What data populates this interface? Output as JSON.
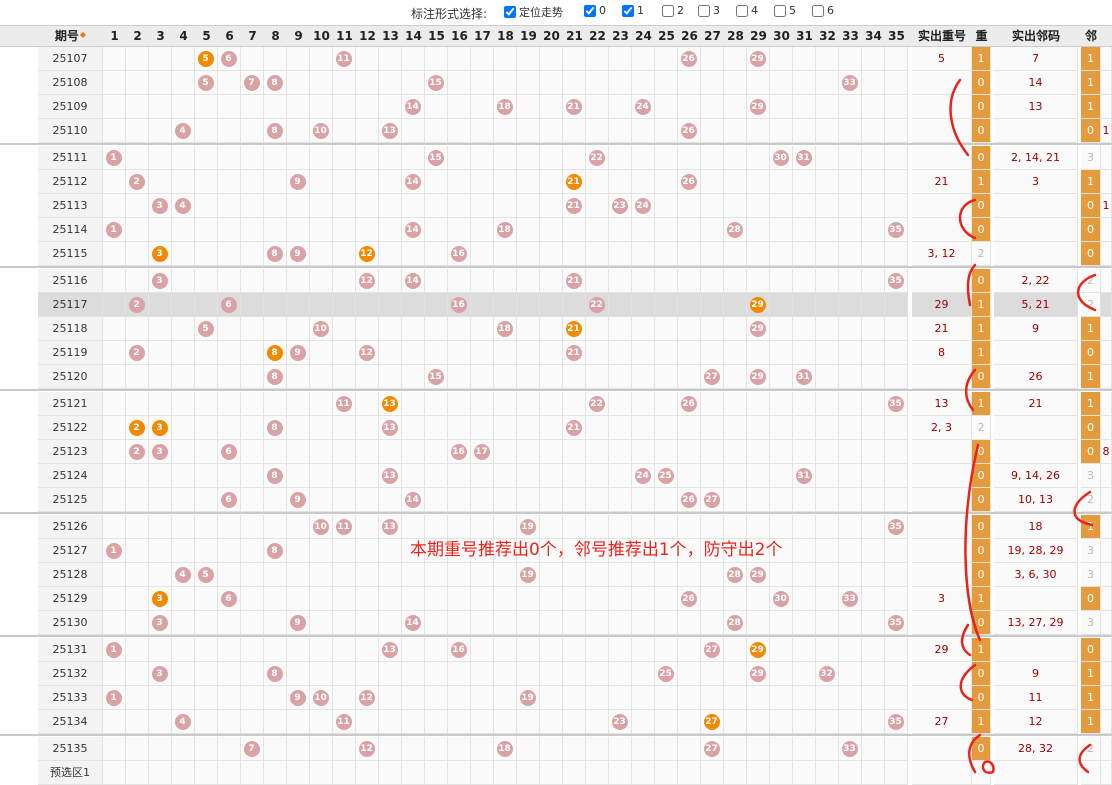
{
  "filter": {
    "title": "标注形式选择:",
    "options": [
      {
        "label": "定位走势",
        "checked": true
      },
      {
        "label": "0",
        "checked": true
      },
      {
        "label": "1",
        "checked": true
      },
      {
        "label": "2",
        "checked": false
      },
      {
        "label": "3",
        "checked": false
      },
      {
        "label": "4",
        "checked": false
      },
      {
        "label": "5",
        "checked": false
      },
      {
        "label": "6",
        "checked": false
      }
    ]
  },
  "header": {
    "period_label": "期号",
    "numbers": [
      "1",
      "2",
      "3",
      "4",
      "5",
      "6",
      "7",
      "8",
      "9",
      "10",
      "11",
      "12",
      "13",
      "14",
      "15",
      "16",
      "17",
      "18",
      "19",
      "20",
      "21",
      "22",
      "23",
      "24",
      "25",
      "26",
      "27",
      "28",
      "29",
      "30",
      "31",
      "32",
      "33",
      "34",
      "35"
    ],
    "repeat_label": "实出重号",
    "zhong_label": "重",
    "neighbor_label": "实出邻码",
    "lin_label": "邻"
  },
  "rows": [
    {
      "id": "25107",
      "balls": [
        [
          5,
          "o"
        ],
        [
          6,
          "p"
        ],
        [
          11,
          "p"
        ],
        [
          26,
          "p"
        ],
        [
          29,
          "p"
        ]
      ],
      "repeat": "5",
      "zhong": "1",
      "neighbor": "7",
      "lin": "1",
      "extra": ""
    },
    {
      "id": "25108",
      "balls": [
        [
          5,
          "p"
        ],
        [
          7,
          "p"
        ],
        [
          8,
          "p"
        ],
        [
          15,
          "p"
        ],
        [
          33,
          "p"
        ]
      ],
      "repeat": "",
      "zhong": "0",
      "neighbor": "14",
      "lin": "1",
      "extra": ""
    },
    {
      "id": "25109",
      "balls": [
        [
          14,
          "p"
        ],
        [
          18,
          "p"
        ],
        [
          21,
          "p"
        ],
        [
          24,
          "p"
        ],
        [
          29,
          "p"
        ]
      ],
      "repeat": "",
      "zhong": "0",
      "neighbor": "13",
      "lin": "1",
      "extra": ""
    },
    {
      "id": "25110",
      "balls": [
        [
          4,
          "p"
        ],
        [
          8,
          "p"
        ],
        [
          10,
          "p"
        ],
        [
          13,
          "p"
        ],
        [
          26,
          "p"
        ]
      ],
      "repeat": "",
      "zhong": "0",
      "neighbor": "",
      "lin": "0",
      "extra": "1"
    },
    {
      "id": "25111",
      "balls": [
        [
          1,
          "p"
        ],
        [
          15,
          "p"
        ],
        [
          22,
          "p"
        ],
        [
          30,
          "p"
        ],
        [
          31,
          "p"
        ]
      ],
      "repeat": "",
      "zhong": "0",
      "neighbor": "2, 14, 21",
      "lin": "3",
      "extra": ""
    },
    {
      "id": "25112",
      "balls": [
        [
          2,
          "p"
        ],
        [
          9,
          "p"
        ],
        [
          14,
          "p"
        ],
        [
          21,
          "o"
        ],
        [
          26,
          "p"
        ]
      ],
      "repeat": "21",
      "zhong": "1",
      "neighbor": "3",
      "lin": "1",
      "extra": ""
    },
    {
      "id": "25113",
      "balls": [
        [
          3,
          "p"
        ],
        [
          4,
          "p"
        ],
        [
          21,
          "p"
        ],
        [
          23,
          "p"
        ],
        [
          24,
          "p"
        ]
      ],
      "repeat": "",
      "zhong": "0",
      "neighbor": "",
      "lin": "0",
      "extra": "1"
    },
    {
      "id": "25114",
      "balls": [
        [
          1,
          "p"
        ],
        [
          14,
          "p"
        ],
        [
          18,
          "p"
        ],
        [
          28,
          "p"
        ],
        [
          35,
          "p"
        ]
      ],
      "repeat": "",
      "zhong": "0",
      "neighbor": "",
      "lin": "0",
      "extra": ""
    },
    {
      "id": "25115",
      "balls": [
        [
          3,
          "o"
        ],
        [
          8,
          "p"
        ],
        [
          9,
          "p"
        ],
        [
          12,
          "o"
        ],
        [
          16,
          "p"
        ]
      ],
      "repeat": "3, 12",
      "zhong": "2",
      "neighbor": "",
      "lin": "0",
      "extra": ""
    },
    {
      "id": "25116",
      "balls": [
        [
          3,
          "p"
        ],
        [
          12,
          "p"
        ],
        [
          14,
          "p"
        ],
        [
          21,
          "p"
        ],
        [
          35,
          "p"
        ]
      ],
      "repeat": "",
      "zhong": "0",
      "neighbor": "2, 22",
      "lin": "2",
      "extra": ""
    },
    {
      "id": "25117",
      "balls": [
        [
          2,
          "p"
        ],
        [
          6,
          "p"
        ],
        [
          16,
          "p"
        ],
        [
          22,
          "p"
        ],
        [
          29,
          "o"
        ]
      ],
      "repeat": "29",
      "zhong": "1",
      "neighbor": "5, 21",
      "lin": "2",
      "extra": ""
    },
    {
      "id": "25118",
      "balls": [
        [
          5,
          "p"
        ],
        [
          10,
          "p"
        ],
        [
          18,
          "p"
        ],
        [
          21,
          "o"
        ],
        [
          29,
          "p"
        ]
      ],
      "repeat": "21",
      "zhong": "1",
      "neighbor": "9",
      "lin": "1",
      "extra": ""
    },
    {
      "id": "25119",
      "balls": [
        [
          2,
          "p"
        ],
        [
          8,
          "o"
        ],
        [
          9,
          "p"
        ],
        [
          12,
          "p"
        ],
        [
          21,
          "p"
        ]
      ],
      "repeat": "8",
      "zhong": "1",
      "neighbor": "",
      "lin": "0",
      "extra": ""
    },
    {
      "id": "25120",
      "balls": [
        [
          8,
          "p"
        ],
        [
          15,
          "p"
        ],
        [
          27,
          "p"
        ],
        [
          29,
          "p"
        ],
        [
          31,
          "p"
        ]
      ],
      "repeat": "",
      "zhong": "0",
      "neighbor": "26",
      "lin": "1",
      "extra": ""
    },
    {
      "id": "25121",
      "balls": [
        [
          11,
          "p"
        ],
        [
          13,
          "o"
        ],
        [
          22,
          "p"
        ],
        [
          26,
          "p"
        ],
        [
          35,
          "p"
        ]
      ],
      "repeat": "13",
      "zhong": "1",
      "neighbor": "21",
      "lin": "1",
      "extra": ""
    },
    {
      "id": "25122",
      "balls": [
        [
          2,
          "o"
        ],
        [
          3,
          "o"
        ],
        [
          8,
          "p"
        ],
        [
          13,
          "p"
        ],
        [
          21,
          "p"
        ]
      ],
      "repeat": "2, 3",
      "zhong": "2",
      "neighbor": "",
      "lin": "0",
      "extra": ""
    },
    {
      "id": "25123",
      "balls": [
        [
          2,
          "p"
        ],
        [
          3,
          "p"
        ],
        [
          6,
          "p"
        ],
        [
          16,
          "p"
        ],
        [
          17,
          "p"
        ]
      ],
      "repeat": "",
      "zhong": "0",
      "neighbor": "",
      "lin": "0",
      "extra": "8"
    },
    {
      "id": "25124",
      "balls": [
        [
          8,
          "p"
        ],
        [
          13,
          "p"
        ],
        [
          24,
          "p"
        ],
        [
          25,
          "p"
        ],
        [
          31,
          "p"
        ]
      ],
      "repeat": "",
      "zhong": "0",
      "neighbor": "9, 14, 26",
      "lin": "3",
      "extra": ""
    },
    {
      "id": "25125",
      "balls": [
        [
          6,
          "p"
        ],
        [
          9,
          "p"
        ],
        [
          14,
          "p"
        ],
        [
          26,
          "p"
        ],
        [
          27,
          "p"
        ]
      ],
      "repeat": "",
      "zhong": "0",
      "neighbor": "10, 13",
      "lin": "2",
      "extra": ""
    },
    {
      "id": "25126",
      "balls": [
        [
          10,
          "p"
        ],
        [
          11,
          "p"
        ],
        [
          13,
          "p"
        ],
        [
          19,
          "p"
        ],
        [
          35,
          "p"
        ]
      ],
      "repeat": "",
      "zhong": "0",
      "neighbor": "18",
      "lin": "1",
      "extra": ""
    },
    {
      "id": "25127",
      "balls": [
        [
          1,
          "p"
        ],
        [
          8,
          "p"
        ]
      ],
      "repeat": "",
      "zhong": "0",
      "neighbor": "19, 28, 29",
      "lin": "3",
      "extra": ""
    },
    {
      "id": "25128",
      "balls": [
        [
          4,
          "p"
        ],
        [
          5,
          "p"
        ],
        [
          19,
          "p"
        ],
        [
          28,
          "p"
        ],
        [
          29,
          "p"
        ]
      ],
      "repeat": "",
      "zhong": "0",
      "neighbor": "3, 6, 30",
      "lin": "3",
      "extra": ""
    },
    {
      "id": "25129",
      "balls": [
        [
          3,
          "o"
        ],
        [
          6,
          "p"
        ],
        [
          26,
          "p"
        ],
        [
          30,
          "p"
        ],
        [
          33,
          "p"
        ]
      ],
      "repeat": "3",
      "zhong": "1",
      "neighbor": "",
      "lin": "0",
      "extra": ""
    },
    {
      "id": "25130",
      "balls": [
        [
          3,
          "p"
        ],
        [
          9,
          "p"
        ],
        [
          14,
          "p"
        ],
        [
          28,
          "p"
        ],
        [
          35,
          "p"
        ]
      ],
      "repeat": "",
      "zhong": "0",
      "neighbor": "13, 27, 29",
      "lin": "3",
      "extra": ""
    },
    {
      "id": "25131",
      "balls": [
        [
          1,
          "p"
        ],
        [
          13,
          "p"
        ],
        [
          16,
          "p"
        ],
        [
          27,
          "p"
        ],
        [
          29,
          "o"
        ]
      ],
      "repeat": "29",
      "zhong": "1",
      "neighbor": "",
      "lin": "0",
      "extra": ""
    },
    {
      "id": "25132",
      "balls": [
        [
          3,
          "p"
        ],
        [
          8,
          "p"
        ],
        [
          25,
          "p"
        ],
        [
          29,
          "p"
        ],
        [
          32,
          "p"
        ]
      ],
      "repeat": "",
      "zhong": "0",
      "neighbor": "9",
      "lin": "1",
      "extra": ""
    },
    {
      "id": "25133",
      "balls": [
        [
          1,
          "p"
        ],
        [
          9,
          "p"
        ],
        [
          10,
          "p"
        ],
        [
          12,
          "p"
        ],
        [
          19,
          "p"
        ]
      ],
      "repeat": "",
      "zhong": "0",
      "neighbor": "11",
      "lin": "1",
      "extra": ""
    },
    {
      "id": "25134",
      "balls": [
        [
          4,
          "p"
        ],
        [
          11,
          "p"
        ],
        [
          23,
          "p"
        ],
        [
          27,
          "o"
        ],
        [
          35,
          "p"
        ]
      ],
      "repeat": "27",
      "zhong": "1",
      "neighbor": "12",
      "lin": "1",
      "extra": ""
    },
    {
      "id": "25135",
      "balls": [
        [
          7,
          "p"
        ],
        [
          12,
          "p"
        ],
        [
          18,
          "p"
        ],
        [
          27,
          "p"
        ],
        [
          33,
          "p"
        ]
      ],
      "repeat": "",
      "zhong": "0",
      "neighbor": "28, 32",
      "lin": "2",
      "extra": ""
    },
    {
      "id": "预选区1",
      "balls": [],
      "repeat": "",
      "zhong": "",
      "neighbor": "",
      "lin": "",
      "extra": ""
    }
  ],
  "annotation": "本期重号推荐出0个，邻号推荐出1个，防守出2个",
  "colors": {
    "ball_pink": "#d9a3a6",
    "ball_orange": "#f08a00",
    "marker": "#e39b3d",
    "annot": "#e8241a"
  }
}
